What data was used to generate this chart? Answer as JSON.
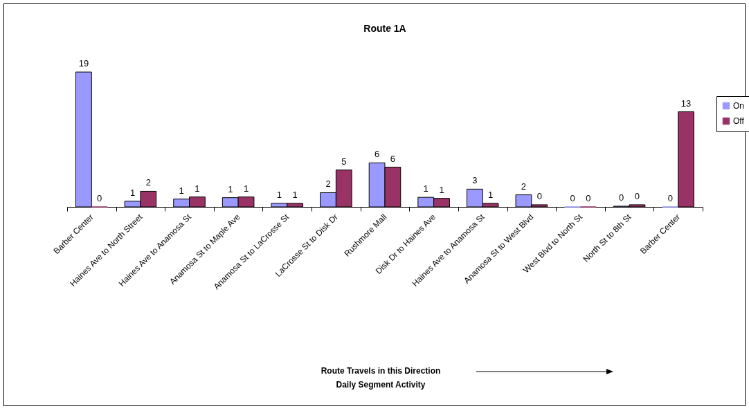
{
  "chart_data": {
    "type": "bar",
    "title": "Route 1A",
    "categories": [
      "Barber Center",
      "Haines Ave to North Street",
      "Haines Ave to Anamosa St",
      "Anamosa St to Maple Ave",
      "Anamosa St to LaCrosse St",
      "LaCrosse St to Disk Dr",
      "Rushmore Mall",
      "Disk Dr to Haines Ave",
      "Haines Ave to Anamosa St",
      "Anamosa St to West Blvd",
      "West Blvd to North St",
      "North St to 8th St",
      "Barber Center"
    ],
    "series": [
      {
        "name": "On",
        "color": "#9999ff",
        "values": [
          19,
          0.8,
          1.1,
          1.3,
          0.5,
          2.0,
          6.2,
          1.35,
          2.5,
          1.7,
          0,
          0.1,
          0
        ],
        "value_labels": [
          "19",
          "1",
          "1",
          "1",
          "1",
          "2",
          "6",
          "1",
          "3",
          "2",
          "0",
          "0",
          "0"
        ]
      },
      {
        "name": "Off",
        "color": "#993366",
        "values": [
          0,
          2.2,
          1.4,
          1.4,
          0.5,
          5.2,
          5.6,
          1.2,
          0.5,
          0.3,
          0,
          0.3,
          13.4
        ],
        "value_labels": [
          "0",
          "2",
          "1",
          "1",
          "1",
          "5",
          "6",
          "1",
          "1",
          "0",
          "0",
          "0",
          "13"
        ]
      }
    ],
    "annotations": [
      "Route Travels in this Direction",
      "Daily Segment Activity"
    ],
    "legend": "right",
    "grid": false
  }
}
